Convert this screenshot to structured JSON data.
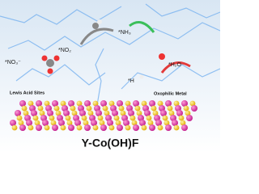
{
  "labels": {
    "no3": "*NO₃⁻",
    "no2": "*NO₂",
    "nh3": "*NH₃",
    "h": "*H",
    "h2o": "*H₂O",
    "lewis": "Lewis Acid Sites",
    "oxophilic": "Oxophilic Metal"
  },
  "title": "Y-Co(OH)F"
}
